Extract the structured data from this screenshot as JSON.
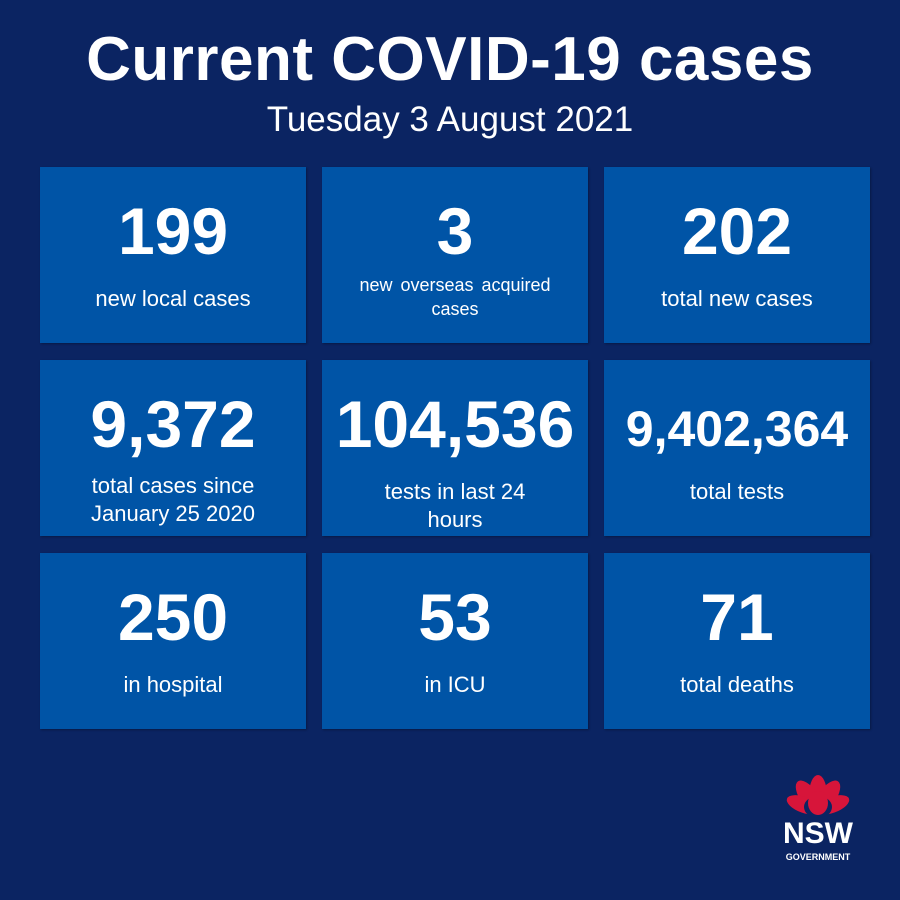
{
  "header": {
    "title": "Current COVID-19 cases",
    "subtitle": "Tuesday 3 August 2021"
  },
  "tiles": [
    {
      "value": "199",
      "label": "new local cases"
    },
    {
      "value": "3",
      "label": "new overseas acquired cases"
    },
    {
      "value": "202",
      "label": "total new cases"
    },
    {
      "value": "9,372",
      "label": "total cases since January 25 2020"
    },
    {
      "value": "104,536",
      "label": "tests in last 24 hours"
    },
    {
      "value": "9,402,364",
      "label": "total tests"
    },
    {
      "value": "250",
      "label": "in hospital"
    },
    {
      "value": "53",
      "label": "in ICU"
    },
    {
      "value": "71",
      "label": "total deaths"
    }
  ],
  "logo": {
    "name": "NSW",
    "sub": "GOVERNMENT"
  }
}
